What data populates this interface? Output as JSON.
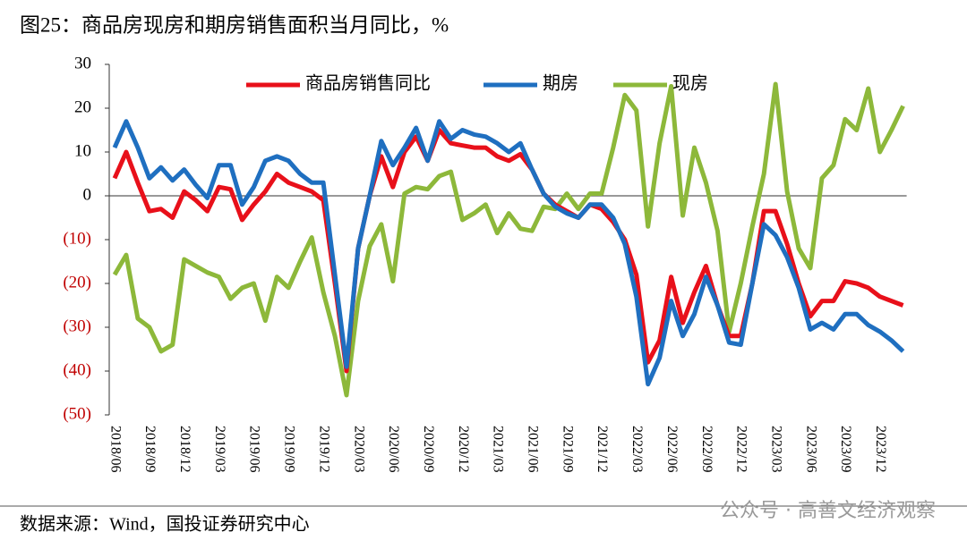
{
  "chart_data": {
    "type": "line",
    "title": "图25：商品房现房和期房销售面积当月同比，%",
    "source": "数据来源：Wind，国投证券研究中心",
    "watermark": "公众号 · 高善文经济观察",
    "categories": [
      "2018/06",
      null,
      null,
      "2018/09",
      null,
      null,
      "2018/12",
      null,
      null,
      "2019/03",
      null,
      null,
      "2019/06",
      null,
      null,
      "2019/09",
      null,
      null,
      "2019/12",
      null,
      null,
      "2020/03",
      null,
      null,
      "2020/06",
      null,
      null,
      "2020/09",
      null,
      null,
      "2020/12",
      null,
      null,
      "2021/03",
      null,
      null,
      "2021/06",
      null,
      null,
      "2021/09",
      null,
      null,
      "2021/12",
      null,
      null,
      "2022/03",
      null,
      null,
      "2022/06",
      null,
      null,
      "2022/09",
      null,
      null,
      "2022/12",
      null,
      null,
      "2023/03",
      null,
      null,
      "2023/06",
      null,
      null,
      "2023/09",
      null,
      null,
      "2023/12",
      null,
      null
    ],
    "series": [
      {
        "name": "商品房销售同比",
        "color": "#e8101a",
        "values": [
          4,
          10,
          3,
          -3.5,
          -3,
          -5,
          1,
          -1,
          -3.5,
          2,
          1.5,
          -5.5,
          -2,
          1,
          5,
          3,
          2,
          1,
          -1,
          -20,
          -40,
          -12,
          0,
          9,
          2,
          10,
          13.5,
          8,
          15,
          12,
          11.5,
          11,
          11,
          9,
          8,
          9.5,
          6,
          0.5,
          -2,
          -3.5,
          -5,
          -2,
          -3,
          -6,
          -10,
          -18,
          -38,
          -33,
          -18.5,
          -29,
          -22,
          -16,
          -25,
          -32,
          -32,
          -20,
          -3.5,
          -3.5,
          -11,
          -20,
          -27.5,
          -24,
          -24,
          -19.5,
          -20,
          -21,
          -23,
          -24,
          -25
        ]
      },
      {
        "name": "期房",
        "color": "#1f6fc0",
        "values": [
          11,
          17,
          11,
          4,
          6.5,
          3.5,
          6,
          2.5,
          -0.5,
          7,
          7,
          -2,
          2,
          8,
          9,
          8,
          5,
          3,
          3,
          -18,
          -39,
          -12,
          0,
          12.5,
          7,
          11,
          15.5,
          8,
          17,
          13,
          15,
          14,
          13.5,
          12,
          10,
          12,
          6,
          0.5,
          -2.5,
          -4,
          -5,
          -2,
          -2,
          -5,
          -11,
          -23,
          -43,
          -37,
          -24,
          -32,
          -27,
          -18.5,
          -25,
          -33.5,
          -34,
          -20,
          -6.5,
          -9,
          -14,
          -21,
          -30.5,
          -29,
          -30.5,
          -27,
          -27,
          -29.5,
          -31,
          -33,
          -35.5
        ]
      },
      {
        "name": "现房",
        "color": "#8db83a",
        "values": [
          -18,
          -13.5,
          -28,
          -30,
          -35.5,
          -34,
          -14.5,
          -16,
          -17.5,
          -18.5,
          -23.5,
          -21,
          -20,
          -28.5,
          -18.5,
          -21,
          -15,
          -9.5,
          -22,
          -32,
          -45.5,
          -24,
          -11.5,
          -6.5,
          -19.5,
          0.5,
          2,
          1.5,
          4.5,
          5.5,
          -5.5,
          -4,
          -2,
          -8.5,
          -4,
          -7.5,
          -8,
          -2.5,
          -3,
          0.5,
          -3,
          0.5,
          0.5,
          11,
          23,
          19.5,
          -7,
          12,
          25,
          -4.5,
          11,
          3,
          -8,
          -31,
          -20,
          -7,
          5,
          25.5,
          1,
          -12,
          -16.5,
          4,
          7,
          17.5,
          15,
          24.5,
          10,
          15,
          20.5
        ]
      }
    ],
    "ylim": [
      -50,
      30
    ],
    "yticks": [
      30,
      20,
      10,
      0,
      {
        "value": -10,
        "label": "(10)"
      },
      {
        "value": -20,
        "label": "(20)"
      },
      {
        "value": -30,
        "label": "(30)"
      },
      {
        "value": -40,
        "label": "(40)"
      },
      {
        "value": -50,
        "label": "(50)"
      }
    ],
    "negative_tick_color": "#c00000",
    "legend": "top",
    "grid": false
  }
}
